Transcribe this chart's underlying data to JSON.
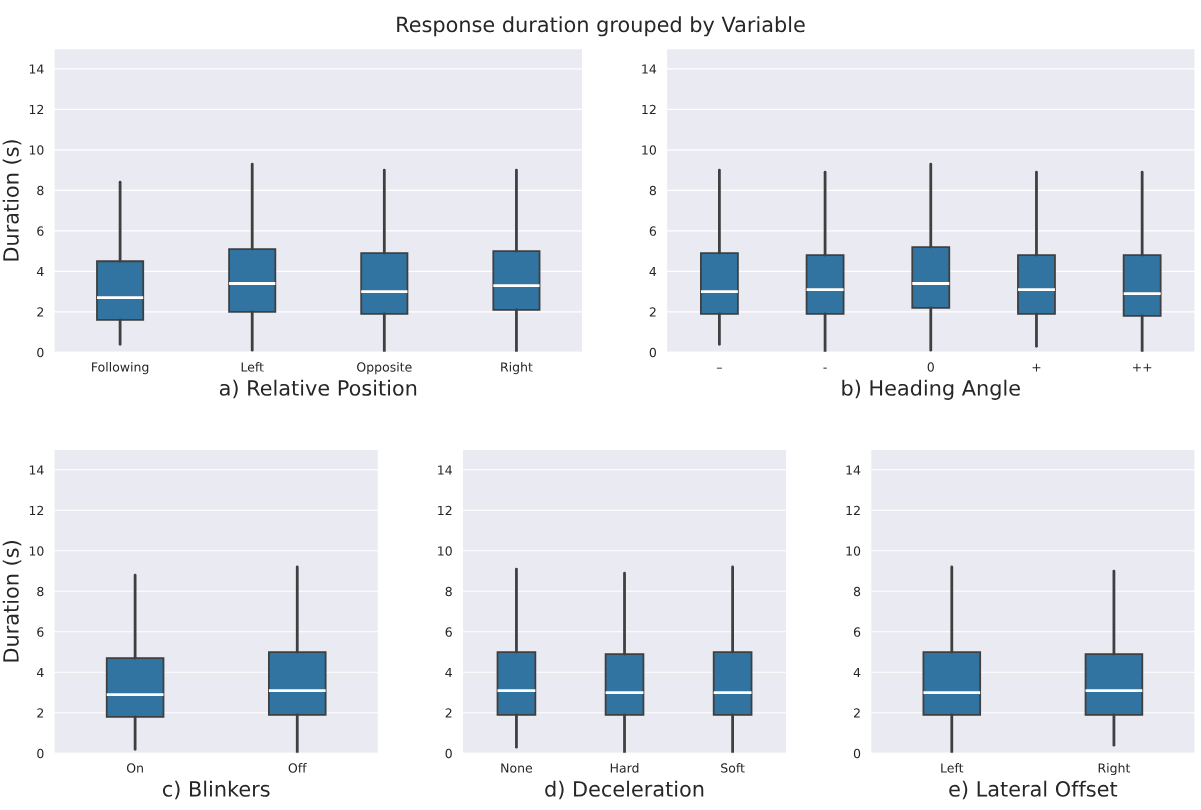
{
  "chart_data": [
    {
      "type": "box",
      "title": "Response duration grouped by Variable",
      "xlabel": "a) Relative Position",
      "ylabel": "Duration (s)",
      "categories": [
        "Following",
        "Left",
        "Opposite",
        "Right"
      ],
      "ylim": [
        0,
        15
      ],
      "yticks": [
        0,
        2,
        4,
        6,
        8,
        10,
        12,
        14
      ],
      "grid": "y",
      "color": "#3274a1",
      "boxes": [
        {
          "low": 0.4,
          "q1": 1.6,
          "median": 2.7,
          "q3": 4.5,
          "high": 8.4
        },
        {
          "low": 0.1,
          "q1": 2.0,
          "median": 3.4,
          "q3": 5.1,
          "high": 9.3
        },
        {
          "low": 0,
          "q1": 1.9,
          "median": 3.0,
          "q3": 4.9,
          "high": 9.0
        },
        {
          "low": 0,
          "q1": 2.1,
          "median": 3.3,
          "q3": 5.0,
          "high": 9.0
        }
      ]
    },
    {
      "type": "box",
      "xlabel": "b) Heading Angle",
      "categories": [
        "–",
        "-",
        "0",
        "+",
        "++"
      ],
      "ylim": [
        0,
        15
      ],
      "yticks": [
        0,
        2,
        4,
        6,
        8,
        10,
        12,
        14
      ],
      "grid": "y",
      "color": "#3274a1",
      "boxes": [
        {
          "low": 0.4,
          "q1": 1.9,
          "median": 3.0,
          "q3": 4.9,
          "high": 9.0
        },
        {
          "low": 0,
          "q1": 1.9,
          "median": 3.1,
          "q3": 4.8,
          "high": 8.9
        },
        {
          "low": 0.1,
          "q1": 2.2,
          "median": 3.4,
          "q3": 5.2,
          "high": 9.3
        },
        {
          "low": 0.3,
          "q1": 1.9,
          "median": 3.1,
          "q3": 4.8,
          "high": 8.9
        },
        {
          "low": 0,
          "q1": 1.8,
          "median": 2.9,
          "q3": 4.8,
          "high": 8.9
        }
      ]
    },
    {
      "type": "box",
      "xlabel": "c) Blinkers",
      "ylabel": "Duration (s)",
      "categories": [
        "On",
        "Off"
      ],
      "ylim": [
        0,
        15
      ],
      "yticks": [
        0,
        2,
        4,
        6,
        8,
        10,
        12,
        14
      ],
      "grid": "y",
      "color": "#3274a1",
      "boxes": [
        {
          "low": 0.2,
          "q1": 1.8,
          "median": 2.9,
          "q3": 4.7,
          "high": 8.8
        },
        {
          "low": 0,
          "q1": 1.9,
          "median": 3.1,
          "q3": 5.0,
          "high": 9.2
        }
      ]
    },
    {
      "type": "box",
      "xlabel": "d) Deceleration",
      "categories": [
        "None",
        "Hard",
        "Soft"
      ],
      "ylim": [
        0,
        15
      ],
      "yticks": [
        0,
        2,
        4,
        6,
        8,
        10,
        12,
        14
      ],
      "grid": "y",
      "color": "#3274a1",
      "boxes": [
        {
          "low": 0.3,
          "q1": 1.9,
          "median": 3.1,
          "q3": 5.0,
          "high": 9.1
        },
        {
          "low": 0,
          "q1": 1.9,
          "median": 3.0,
          "q3": 4.9,
          "high": 8.9
        },
        {
          "low": 0,
          "q1": 1.9,
          "median": 3.0,
          "q3": 5.0,
          "high": 9.2
        }
      ]
    },
    {
      "type": "box",
      "xlabel": "e) Lateral Offset",
      "categories": [
        "Left",
        "Right"
      ],
      "ylim": [
        0,
        15
      ],
      "yticks": [
        0,
        2,
        4,
        6,
        8,
        10,
        12,
        14
      ],
      "grid": "y",
      "color": "#3274a1",
      "boxes": [
        {
          "low": 0,
          "q1": 1.9,
          "median": 3.0,
          "q3": 5.0,
          "high": 9.2
        },
        {
          "low": 0.4,
          "q1": 1.9,
          "median": 3.1,
          "q3": 4.9,
          "high": 9.0
        }
      ]
    }
  ]
}
